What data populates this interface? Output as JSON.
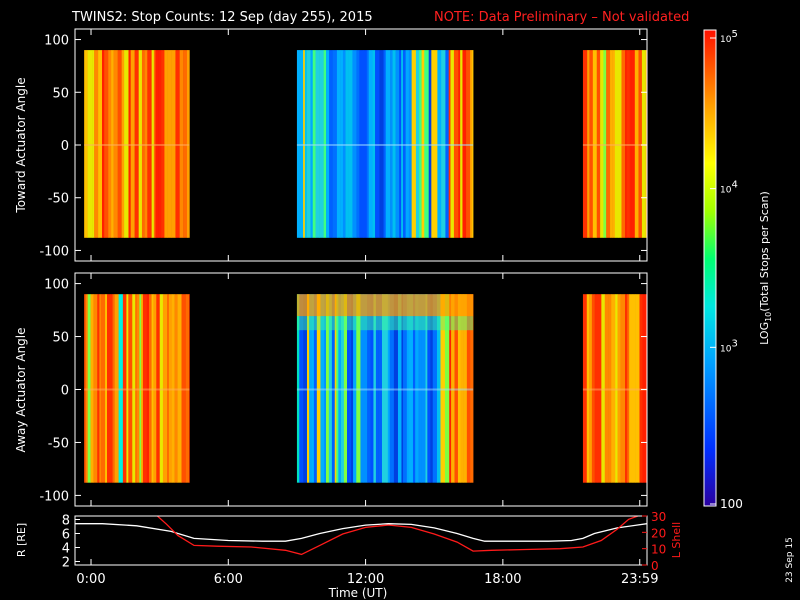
{
  "title": {
    "main": "TWINS2: Stop Counts: 12 Sep (day 255), 2015",
    "note": "NOTE: Data Preliminary – Not validated",
    "note_color": "#ff2020"
  },
  "datestamp": "23 Sep 15",
  "xaxis": {
    "label": "Time (UT)",
    "ticks": [
      {
        "hour": 0,
        "label": "0:00"
      },
      {
        "hour": 6,
        "label": "6:00"
      },
      {
        "hour": 12,
        "label": "12:00"
      },
      {
        "hour": 18,
        "label": "18:00"
      },
      {
        "hour": 23.983,
        "label": "23:59"
      }
    ],
    "range_hours": [
      -0.7,
      24.3
    ]
  },
  "colorbar": {
    "label": "LOG10(Total Stops per Scan)",
    "label_main": "LOG",
    "label_sub": "10",
    "label_rest": "(Total Stops per Scan)",
    "tick_labels": [
      "10",
      "10",
      "10",
      "100"
    ],
    "tick_exponents": [
      "5",
      "4",
      "3",
      ""
    ],
    "log_min": 2,
    "log_max": 5
  },
  "chart_data": [
    {
      "type": "heatmap",
      "name": "toward",
      "ylabel": "Toward Actuator Angle",
      "ylim": [
        -110,
        110
      ],
      "yticks": [
        100,
        50,
        0,
        -50,
        -100
      ],
      "data_extent": [
        -88,
        90
      ],
      "coverage": [
        {
          "start": -0.3,
          "end": 4.3,
          "level": "high"
        },
        {
          "start": 9.0,
          "end": 16.7,
          "level": "low"
        },
        {
          "start": 21.5,
          "end": 24.3,
          "level": "high"
        }
      ]
    },
    {
      "type": "heatmap",
      "name": "away",
      "ylabel": "Away Actuator Angle",
      "ylim": [
        -110,
        110
      ],
      "yticks": [
        100,
        50,
        0,
        -50,
        -100
      ],
      "data_extent": [
        -88,
        90
      ],
      "coverage": [
        {
          "start": -0.3,
          "end": 4.3,
          "level": "high"
        },
        {
          "start": 9.0,
          "end": 16.7,
          "level": "low"
        },
        {
          "start": 21.5,
          "end": 24.3,
          "level": "high"
        }
      ]
    },
    {
      "type": "line",
      "name": "orbit",
      "ylabel_left": "R [RE]",
      "ylabel_right": "L Shell",
      "ylim_left": [
        1.5,
        8.5
      ],
      "ylim_right": [
        0,
        30
      ],
      "yticks_left": [
        8,
        6,
        4,
        2
      ],
      "yticks_right": [
        30,
        20,
        10,
        0
      ],
      "series": [
        {
          "axis": "left",
          "color": "#ffffff",
          "x": [
            -0.7,
            0.5,
            2,
            3.5,
            4.5,
            6,
            7.5,
            8.5,
            9.2,
            10,
            11,
            12,
            13,
            14,
            15,
            16,
            16.7,
            17.2,
            18,
            19,
            20,
            21,
            21.5,
            22,
            23,
            24.3
          ],
          "y": [
            7.4,
            7.4,
            7.1,
            6.3,
            5.3,
            5.0,
            4.9,
            4.9,
            5.3,
            6.0,
            6.7,
            7.2,
            7.4,
            7.3,
            6.8,
            6.0,
            5.3,
            4.9,
            4.9,
            4.9,
            4.9,
            5.0,
            5.3,
            6.0,
            6.8,
            7.4
          ]
        },
        {
          "axis": "right",
          "color": "#ff1a1a",
          "x": [
            2.9,
            3.3,
            3.8,
            4.5,
            5.5,
            7,
            8.5,
            9.2,
            10,
            11,
            12,
            13,
            14,
            15,
            16,
            16.7,
            17.5,
            19,
            20.5,
            21.5,
            22.3,
            23,
            23.5,
            24.3
          ],
          "y": [
            30,
            25,
            18,
            12,
            11.5,
            11,
            9,
            6.5,
            12,
            19,
            23,
            24.5,
            23,
            19,
            14,
            8.5,
            9,
            9.5,
            10,
            11,
            15,
            22,
            28,
            32
          ]
        }
      ]
    }
  ]
}
